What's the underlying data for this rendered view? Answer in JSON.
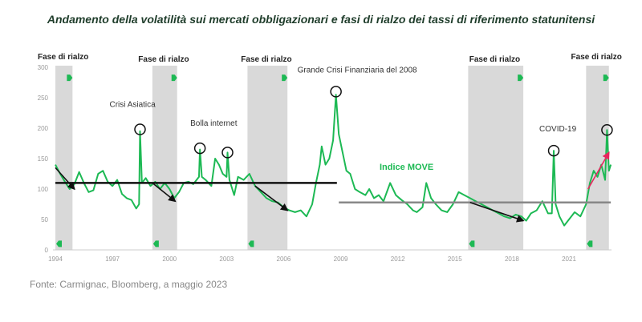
{
  "title": "Andamento della volatilità sui mercati obbligazionari e fasi di rialzo dei tassi di riferimento statunitensi",
  "source": "Fonte: Carmignac, Bloomberg, a maggio 2023",
  "colors": {
    "series": "#1db954",
    "band": "#d9d9d9",
    "mean1": "#111111",
    "mean2": "#888888",
    "trend": "#111111",
    "trend_recent": "#e8265f",
    "title": "#1f3d2b"
  },
  "chart_data": {
    "type": "line",
    "title": "Andamento della volatilità sui mercati obbligazionari e fasi di rialzo dei tassi di riferimento statunitensi",
    "xlabel": "",
    "ylabel": "",
    "xlim": [
      1994,
      2023.3
    ],
    "ylim": [
      0,
      300
    ],
    "xticks": [
      1994,
      1997,
      2000,
      2003,
      2006,
      2009,
      2012,
      2015,
      2018,
      2021
    ],
    "yticks": [
      0,
      50,
      100,
      150,
      200,
      250,
      300
    ],
    "series": [
      {
        "name": "Indice MOVE",
        "x": [
          1994.0,
          1994.25,
          1994.5,
          1994.75,
          1995.0,
          1995.25,
          1995.5,
          1995.75,
          1996.0,
          1996.25,
          1996.5,
          1996.75,
          1997.0,
          1997.25,
          1997.5,
          1997.75,
          1998.0,
          1998.25,
          1998.4,
          1998.45,
          1998.55,
          1998.75,
          1999.0,
          1999.25,
          1999.5,
          1999.75,
          2000.0,
          2000.25,
          2000.5,
          2000.75,
          2001.0,
          2001.25,
          2001.55,
          2001.6,
          2001.7,
          2001.9,
          2002.2,
          2002.4,
          2002.6,
          2002.8,
          2003.0,
          2003.05,
          2003.15,
          2003.4,
          2003.6,
          2003.9,
          2004.2,
          2004.5,
          2004.8,
          2005.1,
          2005.4,
          2005.7,
          2006.0,
          2006.3,
          2006.6,
          2006.9,
          2007.2,
          2007.5,
          2007.7,
          2007.9,
          2008.0,
          2008.2,
          2008.4,
          2008.6,
          2008.75,
          2008.9,
          2009.1,
          2009.3,
          2009.5,
          2009.75,
          2010.0,
          2010.3,
          2010.5,
          2010.75,
          2011.0,
          2011.25,
          2011.6,
          2011.9,
          2012.2,
          2012.5,
          2012.8,
          2013.0,
          2013.3,
          2013.5,
          2013.75,
          2014.0,
          2014.3,
          2014.6,
          2014.9,
          2015.2,
          2015.5,
          2015.8,
          2016.1,
          2016.4,
          2016.7,
          2017.0,
          2017.3,
          2017.6,
          2017.9,
          2018.2,
          2018.5,
          2018.75,
          2019.0,
          2019.3,
          2019.6,
          2019.9,
          2020.1,
          2020.2,
          2020.3,
          2020.5,
          2020.75,
          2021.0,
          2021.3,
          2021.6,
          2021.9,
          2022.1,
          2022.3,
          2022.5,
          2022.7,
          2022.9,
          2023.0,
          2023.1,
          2023.2
        ],
        "y": [
          140,
          125,
          112,
          100,
          108,
          128,
          110,
          95,
          98,
          125,
          130,
          112,
          105,
          115,
          92,
          85,
          82,
          68,
          75,
          195,
          110,
          118,
          105,
          112,
          100,
          110,
          100,
          85,
          95,
          110,
          112,
          108,
          120,
          165,
          120,
          115,
          105,
          150,
          140,
          125,
          120,
          160,
          115,
          90,
          120,
          115,
          125,
          105,
          95,
          85,
          80,
          78,
          70,
          65,
          62,
          65,
          55,
          75,
          110,
          140,
          170,
          140,
          150,
          180,
          255,
          190,
          160,
          130,
          125,
          100,
          95,
          90,
          100,
          85,
          90,
          80,
          110,
          90,
          82,
          75,
          65,
          62,
          70,
          110,
          85,
          75,
          65,
          62,
          75,
          95,
          90,
          85,
          80,
          75,
          70,
          65,
          60,
          55,
          52,
          58,
          55,
          48,
          60,
          65,
          80,
          60,
          60,
          163,
          75,
          55,
          40,
          50,
          62,
          55,
          75,
          110,
          130,
          120,
          140,
          115,
          197,
          130,
          140
        ]
      }
    ],
    "hike_phases": [
      {
        "label": "Fase di rialzo",
        "start": 1994.0,
        "end": 1994.9
      },
      {
        "label": "Fase di rialzo",
        "start": 1999.1,
        "end": 2000.4
      },
      {
        "label": "Fase di rialzo",
        "start": 2004.1,
        "end": 2006.2
      },
      {
        "label": "Fase di rialzo",
        "start": 2015.7,
        "end": 2018.6
      },
      {
        "label": "Fase di rialzo",
        "start": 2021.9,
        "end": 2023.1
      }
    ],
    "averages": [
      {
        "start": 1994.0,
        "end": 2008.8,
        "value": 110,
        "color": "mean1"
      },
      {
        "start": 2008.9,
        "end": 2023.2,
        "value": 78,
        "color": "mean2"
      }
    ],
    "trends": [
      {
        "x0": 1994.0,
        "y0": 135,
        "x1": 1995.0,
        "y1": 100
      },
      {
        "x0": 1999.1,
        "y0": 110,
        "x1": 2000.3,
        "y1": 80
      },
      {
        "x0": 2004.5,
        "y0": 105,
        "x1": 2006.2,
        "y1": 65
      },
      {
        "x0": 2015.8,
        "y0": 78,
        "x1": 2018.6,
        "y1": 48
      },
      {
        "x0": 2022.0,
        "y0": 100,
        "x1": 2023.1,
        "y1": 160,
        "recent": true
      }
    ],
    "annotations": [
      {
        "text": "Crisi Asiatica",
        "x": 1998.45,
        "y": 198
      },
      {
        "text": "Bolla internet",
        "x": 2001.6,
        "y": 167
      },
      {
        "text": "",
        "x": 2003.05,
        "y": 160
      },
      {
        "text": "Grande Crisi Finanziaria del 2008",
        "x": 2008.75,
        "y": 260
      },
      {
        "text": "COVID-19",
        "x": 2020.2,
        "y": 163
      },
      {
        "text": "",
        "x": 2023.0,
        "y": 197
      }
    ],
    "series_label": "Indice MOVE"
  }
}
